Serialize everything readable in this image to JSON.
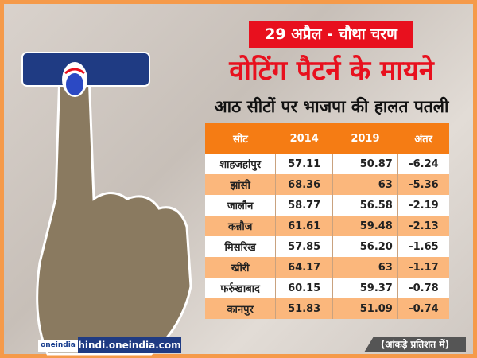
{
  "header": {
    "date_stage": "29 अप्रैल - चौथा चरण",
    "headline": "वोटिंग पैटर्न के मायने",
    "subheadline": "आठ सीटों पर भाजपा की हालत पतली"
  },
  "table": {
    "columns": [
      "सीट",
      "2014",
      "2019",
      "अंतर"
    ],
    "rows": [
      [
        "शाहजहांपुर",
        "57.11",
        "50.87",
        "-6.24"
      ],
      [
        "झांसी",
        "68.36",
        "63",
        "-5.36"
      ],
      [
        "जालौन",
        "58.77",
        "56.58",
        "-2.19"
      ],
      [
        "कन्नौज",
        "61.61",
        "59.48",
        "-2.13"
      ],
      [
        "मिसरिख",
        "57.85",
        "56.20",
        "-1.65"
      ],
      [
        "खीरी",
        "64.17",
        "63",
        "-1.17"
      ],
      [
        "फर्रुखाबाद",
        "60.15",
        "59.37",
        "-0.78"
      ],
      [
        "कानपुर",
        "51.83",
        "51.09",
        "-0.74"
      ]
    ]
  },
  "footer": {
    "logo": "oneindia",
    "site": "hindi.oneindia.com",
    "note": "(आंकड़े प्रतिशत में)"
  },
  "colors": {
    "accent_red": "#e8101e",
    "header_orange": "#f57c14",
    "row_peach": "#fbb77c",
    "frame": "#f59a4a"
  }
}
